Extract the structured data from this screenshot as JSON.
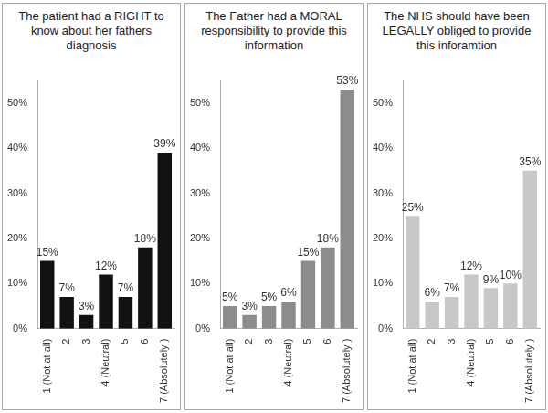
{
  "chart_data": [
    {
      "type": "bar",
      "title": "The patient had a RIGHT to know about her fathers diagnosis",
      "categories": [
        "1 (Not at all)",
        "2",
        "3",
        "4 (Neutral)",
        "5",
        "6",
        "7 (Absolutely )"
      ],
      "values": [
        15,
        7,
        3,
        12,
        7,
        18,
        39
      ],
      "value_labels": [
        "15%",
        "7%",
        "3%",
        "12%",
        "7%",
        "18%",
        "39%"
      ],
      "color": "#111111",
      "ylim": [
        0,
        55
      ],
      "yticks": [
        {
          "value": 0,
          "label": "0%"
        },
        {
          "value": 10,
          "label": "10%"
        },
        {
          "value": 20,
          "label": "20%"
        },
        {
          "value": 30,
          "label": "30%"
        },
        {
          "value": 40,
          "label": "40%"
        },
        {
          "value": 50,
          "label": "50%"
        }
      ],
      "grid": false,
      "data_labels": true
    },
    {
      "type": "bar",
      "title": "The Father had a MORAL responsibility to provide this information",
      "categories": [
        "1 (Not at all)",
        "2",
        "3",
        "4 (Neutral)",
        "5",
        "6",
        "7 (Absolutely )"
      ],
      "values": [
        5,
        3,
        5,
        6,
        15,
        18,
        53
      ],
      "value_labels": [
        "5%",
        "3%",
        "5%",
        "6%",
        "15%",
        "18%",
        "53%"
      ],
      "color": "#8c8c8c",
      "ylim": [
        0,
        55
      ],
      "yticks": [
        {
          "value": 0,
          "label": "0%"
        },
        {
          "value": 10,
          "label": "10%"
        },
        {
          "value": 20,
          "label": "20%"
        },
        {
          "value": 30,
          "label": "30%"
        },
        {
          "value": 40,
          "label": "40%"
        },
        {
          "value": 50,
          "label": "50%"
        }
      ],
      "grid": false,
      "data_labels": true
    },
    {
      "type": "bar",
      "title": "The NHS should have been LEGALLY obliged to provide this inforamtion",
      "categories": [
        "1 (Not at all)",
        "2",
        "3",
        "4 (Neutral)",
        "5",
        "6",
        "7 (Absolutely )"
      ],
      "values": [
        25,
        6,
        7,
        12,
        9,
        10,
        35
      ],
      "value_labels": [
        "25%",
        "6%",
        "7%",
        "12%",
        "9%",
        "10%",
        "35%"
      ],
      "color": "#c8c8c8",
      "ylim": [
        0,
        55
      ],
      "yticks": [
        {
          "value": 0,
          "label": "0%"
        },
        {
          "value": 10,
          "label": "10%"
        },
        {
          "value": 20,
          "label": "20%"
        },
        {
          "value": 30,
          "label": "30%"
        },
        {
          "value": 40,
          "label": "40%"
        },
        {
          "value": 50,
          "label": "50%"
        }
      ],
      "grid": false,
      "data_labels": true
    }
  ]
}
